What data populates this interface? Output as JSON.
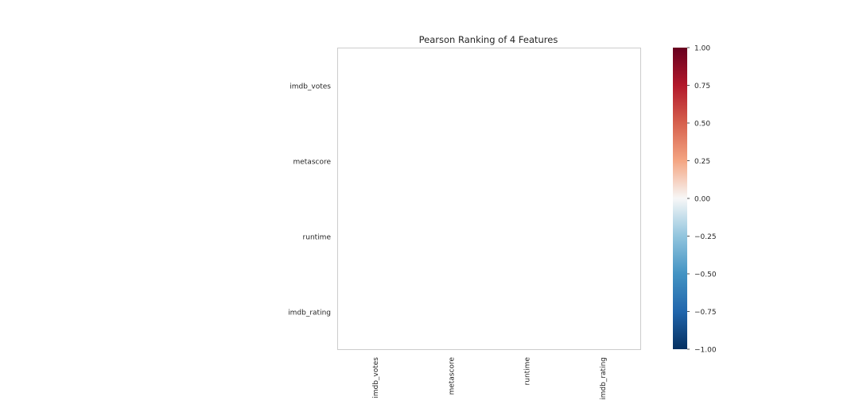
{
  "chart_data": {
    "type": "heatmap",
    "title": "Pearson Ranking of 4 Features",
    "xlabel": "",
    "ylabel": "",
    "features": [
      "imdb_votes",
      "metascore",
      "runtime",
      "imdb_rating"
    ],
    "values": [],
    "colorbar": {
      "min": -1.0,
      "max": 1.0,
      "ticks": [
        "−1.00",
        "−0.75",
        "−0.50",
        "−0.25",
        "0.00",
        "0.25",
        "0.50",
        "0.75",
        "1.00"
      ],
      "tick_values": [
        -1.0,
        -0.75,
        -0.5,
        -0.25,
        0.0,
        0.25,
        0.5,
        0.75,
        1.0
      ],
      "colormap": "RdBu_r",
      "color_stops": [
        "#053061",
        "#2166ac",
        "#4393c3",
        "#92c5de",
        "#f7f7f7",
        "#f4a582",
        "#d6604d",
        "#b2182b",
        "#67001f"
      ]
    },
    "grid": false,
    "frame_color": "#cccccc"
  }
}
